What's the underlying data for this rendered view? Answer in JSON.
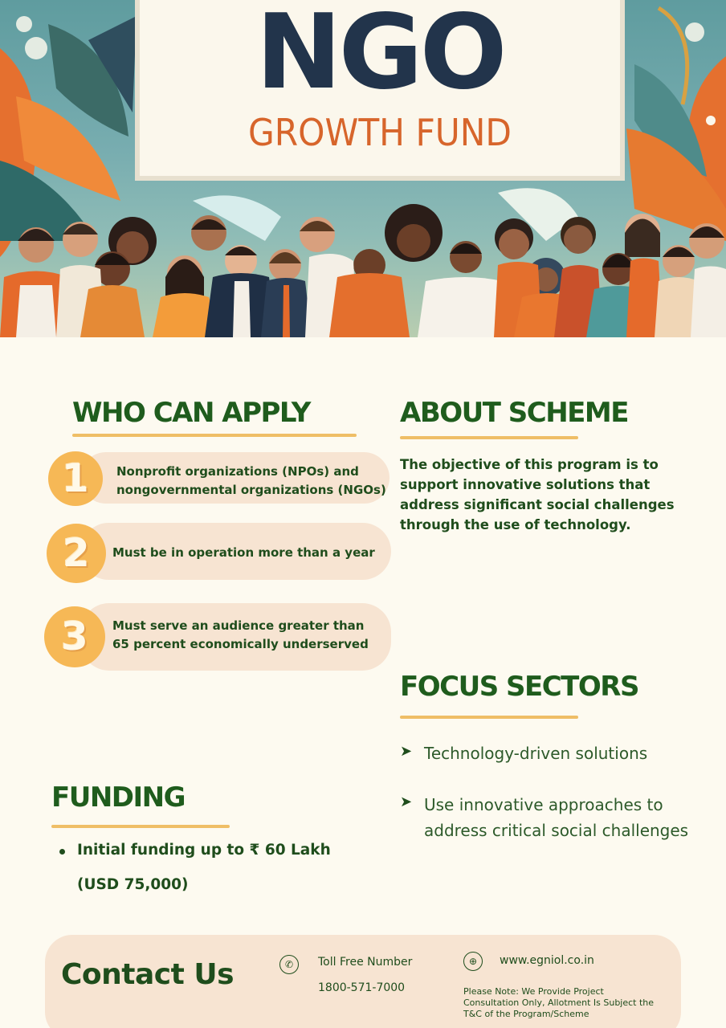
{
  "hero": {
    "title": "NGO",
    "subtitle": "GROWTH FUND"
  },
  "who_can_apply": {
    "heading": "WHO CAN APPLY",
    "items": [
      {
        "number": "1",
        "lines": [
          "Nonprofit organizations (NPOs) and",
          "nongovernmental organizations (NGOs)"
        ]
      },
      {
        "number": "2",
        "lines": [
          "Must be in operation more than a year"
        ]
      },
      {
        "number": "3",
        "lines": [
          "Must serve an audience greater than",
          "65 percent economically underserved"
        ]
      }
    ]
  },
  "about_scheme": {
    "heading": "ABOUT SCHEME",
    "lines": [
      "The objective of this program is to",
      "support innovative solutions that",
      "address significant social challenges",
      "through the use of technology."
    ]
  },
  "focus_sectors": {
    "heading": "FOCUS SECTORS",
    "items": [
      {
        "lines": [
          "Technology-driven solutions"
        ]
      },
      {
        "lines": [
          "Use innovative approaches to",
          "address critical social challenges"
        ]
      }
    ]
  },
  "funding": {
    "heading": "FUNDING",
    "line1": "Initial funding up to ₹ 60 Lakh",
    "line2": "(USD 75,000)"
  },
  "contact": {
    "title": "Contact Us",
    "toll_free_label": "Toll Free Number",
    "toll_free_number": "1800-571-7000",
    "website": "www.egniol.co.in",
    "note_lines": [
      "Please Note: We Provide Project",
      "Consultation Only, Allotment Is Subject the",
      "T&C of the Program/Scheme"
    ],
    "phone_icon": "phone-icon",
    "globe_icon": "globe-icon"
  },
  "colors": {
    "heading_green": "#1f5c1d",
    "accent_orange": "#f6b856",
    "pill_bg": "#f7e4d2",
    "page_bg": "#fdfaf0"
  }
}
